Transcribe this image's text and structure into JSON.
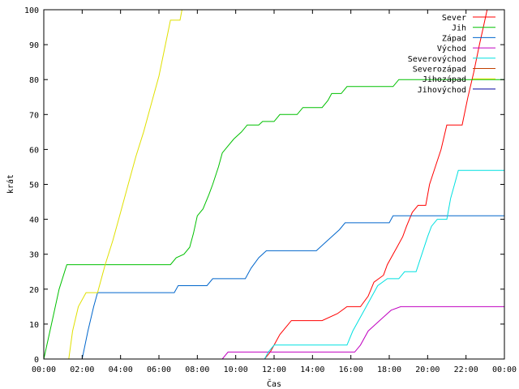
{
  "chart_data": {
    "type": "line",
    "xlabel": "Čas",
    "ylabel": "krát",
    "ylim": [
      0,
      100
    ],
    "xlim": [
      0,
      24
    ],
    "x_ticks": [
      "00:00",
      "02:00",
      "04:00",
      "06:00",
      "08:00",
      "10:00",
      "12:00",
      "14:00",
      "16:00",
      "18:00",
      "20:00",
      "22:00",
      "00:00"
    ],
    "y_ticks": [
      0,
      10,
      20,
      30,
      40,
      50,
      60,
      70,
      80,
      90,
      100
    ],
    "grid": false,
    "legend_position": "top-right",
    "series": [
      {
        "name": "Sever",
        "color": "#ff0000",
        "points": [
          [
            0,
            0
          ],
          [
            11.5,
            0
          ],
          [
            11.8,
            2
          ],
          [
            12.0,
            4
          ],
          [
            12.3,
            7
          ],
          [
            12.6,
            9
          ],
          [
            12.9,
            11
          ],
          [
            14.5,
            11
          ],
          [
            15.3,
            13
          ],
          [
            15.8,
            15
          ],
          [
            16.5,
            15
          ],
          [
            16.9,
            18
          ],
          [
            17.2,
            22
          ],
          [
            17.7,
            24
          ],
          [
            17.9,
            27
          ],
          [
            18.2,
            30
          ],
          [
            18.4,
            32
          ],
          [
            18.7,
            35
          ],
          [
            18.9,
            38
          ],
          [
            19.2,
            42
          ],
          [
            19.5,
            44
          ],
          [
            19.9,
            44
          ],
          [
            20.1,
            50
          ],
          [
            20.4,
            55
          ],
          [
            20.7,
            60
          ],
          [
            21.0,
            67
          ],
          [
            21.8,
            67
          ],
          [
            22.1,
            75
          ],
          [
            22.4,
            82
          ],
          [
            22.7,
            90
          ],
          [
            22.9,
            95
          ],
          [
            23.1,
            100
          ]
        ]
      },
      {
        "name": "Jih",
        "color": "#00c000",
        "points": [
          [
            0,
            0
          ],
          [
            0.4,
            10
          ],
          [
            0.8,
            20
          ],
          [
            1.2,
            27
          ],
          [
            6.6,
            27
          ],
          [
            6.9,
            29
          ],
          [
            7.3,
            30
          ],
          [
            7.6,
            32
          ],
          [
            7.8,
            36
          ],
          [
            8.0,
            41
          ],
          [
            8.3,
            43
          ],
          [
            8.6,
            47
          ],
          [
            8.8,
            50
          ],
          [
            9.1,
            55
          ],
          [
            9.3,
            59
          ],
          [
            9.6,
            61
          ],
          [
            9.9,
            63
          ],
          [
            10.3,
            65
          ],
          [
            10.6,
            67
          ],
          [
            11.2,
            67
          ],
          [
            11.4,
            68
          ],
          [
            12.0,
            68
          ],
          [
            12.3,
            70
          ],
          [
            13.2,
            70
          ],
          [
            13.5,
            72
          ],
          [
            14.5,
            72
          ],
          [
            14.8,
            74
          ],
          [
            15.0,
            76
          ],
          [
            15.5,
            76
          ],
          [
            15.8,
            78
          ],
          [
            18.2,
            78
          ],
          [
            18.5,
            80
          ],
          [
            24,
            80
          ]
        ]
      },
      {
        "name": "Západ",
        "color": "#0066cc",
        "points": [
          [
            0,
            0
          ],
          [
            2.0,
            0
          ],
          [
            2.3,
            8
          ],
          [
            2.6,
            15
          ],
          [
            2.8,
            19
          ],
          [
            6.8,
            19
          ],
          [
            7.0,
            21
          ],
          [
            8.5,
            21
          ],
          [
            8.8,
            23
          ],
          [
            10.5,
            23
          ],
          [
            10.8,
            26
          ],
          [
            11.2,
            29
          ],
          [
            11.6,
            31
          ],
          [
            14.2,
            31
          ],
          [
            14.6,
            33
          ],
          [
            15.0,
            35
          ],
          [
            15.4,
            37
          ],
          [
            15.7,
            39
          ],
          [
            18.0,
            39
          ],
          [
            18.2,
            41
          ],
          [
            24,
            41
          ]
        ]
      },
      {
        "name": "Východ",
        "color": "#c000c0",
        "points": [
          [
            0,
            0
          ],
          [
            9.3,
            0
          ],
          [
            9.6,
            2
          ],
          [
            16.2,
            2
          ],
          [
            16.5,
            4
          ],
          [
            16.9,
            8
          ],
          [
            17.3,
            10
          ],
          [
            17.7,
            12
          ],
          [
            18.1,
            14
          ],
          [
            18.6,
            15
          ],
          [
            24,
            15
          ]
        ]
      },
      {
        "name": "Severovýchod",
        "color": "#00e0e0",
        "points": [
          [
            0,
            0
          ],
          [
            11.5,
            0
          ],
          [
            11.7,
            2
          ],
          [
            12.0,
            4
          ],
          [
            15.8,
            4
          ],
          [
            16.1,
            8
          ],
          [
            16.5,
            12
          ],
          [
            16.8,
            15
          ],
          [
            17.1,
            18
          ],
          [
            17.4,
            21
          ],
          [
            17.9,
            23
          ],
          [
            18.5,
            23
          ],
          [
            18.8,
            25
          ],
          [
            19.4,
            25
          ],
          [
            19.7,
            30
          ],
          [
            20.0,
            35
          ],
          [
            20.2,
            38
          ],
          [
            20.5,
            40
          ],
          [
            21.0,
            40
          ],
          [
            21.2,
            46
          ],
          [
            21.4,
            50
          ],
          [
            21.6,
            54
          ],
          [
            24,
            54
          ]
        ]
      },
      {
        "name": "Severozápad",
        "color": "#c04000",
        "points": []
      },
      {
        "name": "Jihozápad",
        "color": "#e0e000",
        "points": [
          [
            0,
            0
          ],
          [
            1.3,
            0
          ],
          [
            1.5,
            8
          ],
          [
            1.8,
            15
          ],
          [
            2.2,
            19
          ],
          [
            2.8,
            19
          ],
          [
            3.2,
            27
          ],
          [
            3.6,
            34
          ],
          [
            4.0,
            42
          ],
          [
            4.4,
            50
          ],
          [
            4.8,
            58
          ],
          [
            5.2,
            65
          ],
          [
            5.6,
            73
          ],
          [
            6.0,
            81
          ],
          [
            6.3,
            89
          ],
          [
            6.6,
            97
          ],
          [
            7.1,
            97
          ],
          [
            7.2,
            100
          ]
        ]
      },
      {
        "name": "Jihovýchod",
        "color": "#0000a0",
        "points": []
      }
    ]
  }
}
